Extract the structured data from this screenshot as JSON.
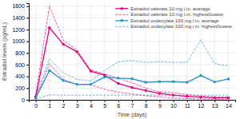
{
  "chart_data": {
    "type": "line",
    "xlabel": "Time (days)",
    "ylabel": "Estradiol levels (pg/mL)",
    "x": [
      0,
      1,
      2,
      3,
      4,
      5,
      6,
      7,
      8,
      9,
      10,
      11,
      12,
      13,
      14
    ],
    "series": [
      {
        "name": "Estradiol valerate 10 mg i.m. average",
        "color": "#e8007a",
        "line_style": "solid",
        "marker": "square",
        "values": [
          50,
          1230,
          950,
          820,
          490,
          420,
          280,
          210,
          160,
          110,
          80,
          60,
          45,
          35,
          35
        ]
      },
      {
        "name": "Estradiol valerate 10 mg i.m. highest/lowest",
        "color": "#e8007a",
        "line_style": "dashed",
        "values": [
          80,
          1600,
          1020,
          850,
          510,
          440,
          370,
          290,
          200,
          140,
          120,
          90,
          65,
          50,
          45
        ]
      },
      {
        "name": "Estradiol valerate 10 mg i.m. highest/lowest",
        "color": "#e8007a",
        "line_style": "dashed",
        "values": [
          20,
          620,
          350,
          260,
          260,
          180,
          130,
          100,
          70,
          50,
          30,
          20,
          15,
          10,
          10
        ]
      },
      {
        "name": "Estradiol undecylate 100 mg i.m. average",
        "color": "#2196c8",
        "line_style": "solid",
        "marker": "square",
        "values": [
          30,
          500,
          330,
          265,
          265,
          390,
          370,
          360,
          300,
          310,
          310,
          300,
          415,
          305,
          355
        ]
      },
      {
        "name": "Estradiol undecylate 100 mg i.m. highest/lowest",
        "color": "#2196c8",
        "line_style": "dashed",
        "values": [
          60,
          700,
          460,
          350,
          320,
          500,
          650,
          670,
          640,
          650,
          640,
          640,
          1020,
          620,
          580
        ]
      },
      {
        "name": "Estradiol undecylate 100 mg i.m. highest/lowest",
        "color": "#2196c8",
        "line_style": "dashed",
        "values": [
          10,
          85,
          80,
          80,
          80,
          80,
          80,
          80,
          80,
          80,
          80,
          80,
          80,
          80,
          80
        ]
      }
    ],
    "xlim": [
      -0.5,
      14.5
    ],
    "xticks": [
      0,
      1,
      2,
      3,
      4,
      5,
      6,
      7,
      8,
      9,
      10,
      11,
      12,
      13,
      14
    ],
    "ylim": [
      0,
      1650
    ],
    "yticks": [
      0,
      200,
      400,
      600,
      800,
      1000,
      1200,
      1400,
      1600
    ],
    "grid": true,
    "legend": "upper right"
  }
}
